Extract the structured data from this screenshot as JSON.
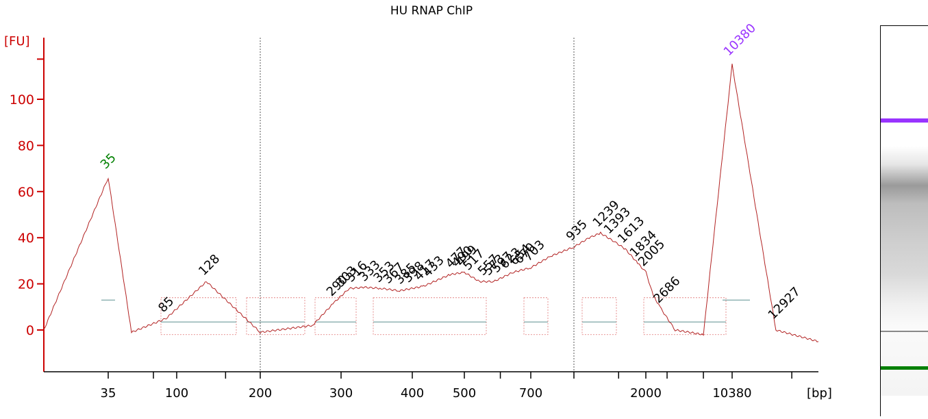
{
  "chart_data": {
    "type": "line",
    "title": "HU RNAP ChIP",
    "ylabel": "[FU]",
    "xlabel": "[bp]",
    "ylim": [
      -18,
      118
    ],
    "y_ticks": [
      0,
      20,
      40,
      60,
      80,
      100
    ],
    "x_tick_labels": [
      "35",
      "100",
      "200",
      "300",
      "400",
      "500",
      "700",
      "2000",
      "10380"
    ],
    "marker_lower": {
      "label": "35",
      "height": 66,
      "color": "#008000"
    },
    "marker_upper": {
      "label": "10380",
      "height": 115,
      "color": "#9933ff"
    },
    "peak_labels": [
      "85",
      "128",
      "290",
      "303",
      "316",
      "333",
      "353",
      "367",
      "385",
      "398",
      "417",
      "433",
      "477",
      "490",
      "499",
      "517",
      "557",
      "573",
      "597",
      "623",
      "654",
      "670",
      "703",
      "935",
      "1239",
      "1393",
      "1613",
      "1834",
      "2005",
      "2686",
      "12927"
    ],
    "trace_samples": {
      "x_bp": [
        20,
        35,
        50,
        85,
        128,
        200,
        260,
        290,
        310,
        330,
        353,
        380,
        420,
        470,
        500,
        540,
        580,
        640,
        700,
        800,
        935,
        1100,
        1239,
        1450,
        1613,
        1834,
        2005,
        2300,
        2686,
        3500,
        6000,
        10380,
        12927,
        16000
      ],
      "fu": [
        0,
        66,
        -1,
        5,
        21,
        -1,
        2,
        12,
        18,
        18.5,
        18,
        17,
        19,
        24,
        25,
        21,
        21,
        25,
        27,
        32,
        36,
        40,
        42,
        38,
        35,
        29,
        25,
        15,
        9,
        0,
        -2,
        115,
        0,
        -5
      ]
    }
  },
  "gel": {
    "upper_marker_color": "#9933ff",
    "lower_marker_color": "#008000"
  }
}
